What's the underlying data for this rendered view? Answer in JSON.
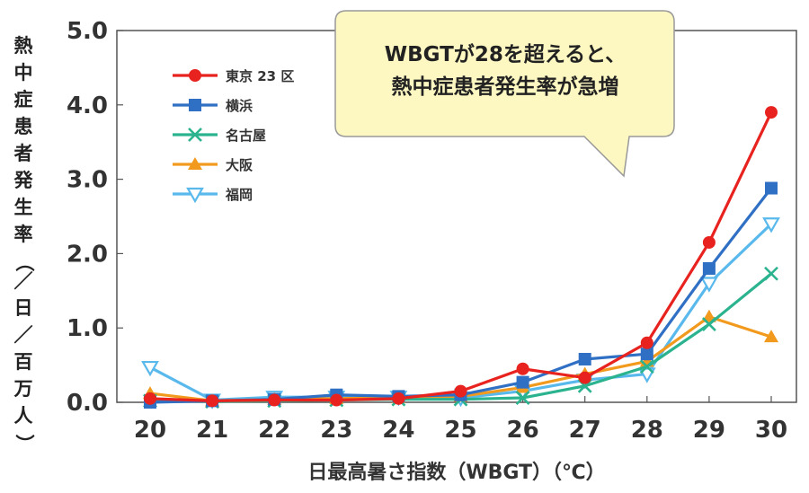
{
  "chart_data": {
    "type": "line",
    "xlabel": "日最高暑さ指数（WBGT）（℃）",
    "ylabel": "熱中症患者発生率（／日／百万人）",
    "annotation": [
      "WBGTが28を超えると、",
      "熱中症患者発生率が急増"
    ],
    "categories": [
      "20",
      "21",
      "22",
      "23",
      "24",
      "25",
      "26",
      "27",
      "28",
      "29",
      "30"
    ],
    "y_ticks": [
      "0.0",
      "1.0",
      "2.0",
      "3.0",
      "4.0",
      "5.0"
    ],
    "ylim": [
      0,
      5
    ],
    "grid": false,
    "legend_position": "top-left",
    "series": [
      {
        "name": "東京 23 区",
        "color": "#e8221e",
        "marker": "circle",
        "values": [
          0.05,
          0.02,
          0.03,
          0.03,
          0.05,
          0.15,
          0.45,
          0.33,
          0.8,
          2.15,
          3.9
        ]
      },
      {
        "name": "横浜",
        "color": "#2f6fc4",
        "marker": "square",
        "values": [
          0.0,
          0.02,
          0.04,
          0.1,
          0.08,
          0.1,
          0.27,
          0.58,
          0.65,
          1.8,
          2.88
        ]
      },
      {
        "name": "名古屋",
        "color": "#2ab38e",
        "marker": "x",
        "values": [
          0.02,
          0.01,
          0.02,
          0.03,
          0.04,
          0.04,
          0.06,
          0.22,
          0.48,
          1.05,
          1.73
        ]
      },
      {
        "name": "大阪",
        "color": "#f29a1e",
        "marker": "triangle",
        "values": [
          0.12,
          0.02,
          0.04,
          0.05,
          0.06,
          0.08,
          0.2,
          0.38,
          0.55,
          1.15,
          0.88
        ]
      },
      {
        "name": "福岡",
        "color": "#5ab9ec",
        "marker": "triangle-down",
        "values": [
          0.47,
          0.03,
          0.07,
          0.07,
          0.07,
          0.06,
          0.15,
          0.3,
          0.38,
          1.6,
          2.4
        ]
      }
    ]
  }
}
